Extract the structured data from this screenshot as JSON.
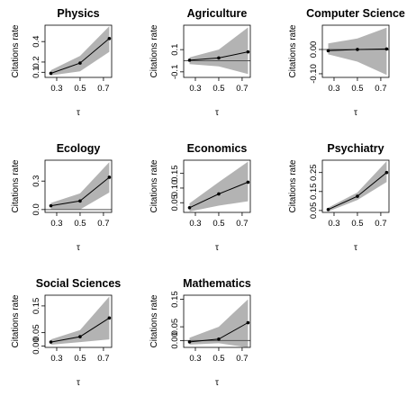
{
  "chart_data": [
    {
      "type": "line",
      "title": "Physics",
      "xlabel": "τ",
      "ylabel": "Citations rate",
      "x": [
        0.25,
        0.5,
        0.75
      ],
      "y": [
        0.09,
        0.19,
        0.43
      ],
      "band": {
        "lower": [
          0.07,
          0.11,
          0.3
        ],
        "upper": [
          0.12,
          0.26,
          0.55
        ]
      },
      "xticks": [
        0.3,
        0.5,
        0.7
      ],
      "yticks": [
        0.1,
        0.2,
        0.4
      ],
      "ytick_labels": [
        "0.1",
        "0.2",
        "0.4"
      ],
      "ylim": [
        0.05,
        0.56
      ],
      "xlim": [
        0.2,
        0.77
      ],
      "zero_line": false
    },
    {
      "type": "line",
      "title": "Agriculture",
      "xlabel": "τ",
      "ylabel": "Citations rate",
      "x": [
        0.25,
        0.5,
        0.75
      ],
      "y": [
        0.005,
        0.025,
        0.08
      ],
      "band": {
        "lower": [
          -0.03,
          -0.05,
          -0.12
        ],
        "upper": [
          0.03,
          0.1,
          0.3
        ]
      },
      "xticks": [
        0.3,
        0.5,
        0.7
      ],
      "yticks": [
        -0.1,
        0.1
      ],
      "ytick_labels": [
        "-0.1",
        "0.1"
      ],
      "ylim": [
        -0.15,
        0.32
      ],
      "xlim": [
        0.2,
        0.77
      ],
      "zero_line": true
    },
    {
      "type": "line",
      "title": "Computer Science",
      "xlabel": "τ",
      "ylabel": "Citations rate",
      "x": [
        0.25,
        0.5,
        0.75
      ],
      "y": [
        -0.005,
        0.0,
        0.002
      ],
      "band": {
        "lower": [
          -0.02,
          -0.05,
          -0.105
        ],
        "upper": [
          0.025,
          0.045,
          0.09
        ]
      },
      "xticks": [
        0.3,
        0.5,
        0.7
      ],
      "yticks": [
        -0.1,
        0.0
      ],
      "ytick_labels": [
        "-0.10",
        "0.00"
      ],
      "ylim": [
        -0.115,
        0.1
      ],
      "xlim": [
        0.2,
        0.77
      ],
      "zero_line": true
    },
    {
      "type": "line",
      "title": "Ecology",
      "xlabel": "τ",
      "ylabel": "Citations rate",
      "x": [
        0.25,
        0.5,
        0.75
      ],
      "y": [
        0.04,
        0.09,
        0.34
      ],
      "band": {
        "lower": [
          0.0,
          0.0,
          0.18
        ],
        "upper": [
          0.07,
          0.17,
          0.5
        ]
      },
      "xticks": [
        0.3,
        0.5,
        0.7
      ],
      "yticks": [
        0.0,
        0.3
      ],
      "ytick_labels": [
        "0.0",
        "0.3"
      ],
      "ylim": [
        -0.03,
        0.52
      ],
      "xlim": [
        0.2,
        0.77
      ],
      "zero_line": true
    },
    {
      "type": "line",
      "title": "Economics",
      "xlabel": "τ",
      "ylabel": "Citations rate",
      "x": [
        0.25,
        0.5,
        0.75
      ],
      "y": [
        0.033,
        0.08,
        0.12
      ],
      "band": {
        "lower": [
          0.02,
          0.04,
          0.055
        ],
        "upper": [
          0.048,
          0.12,
          0.19
        ]
      },
      "xticks": [
        0.3,
        0.5,
        0.7
      ],
      "yticks": [
        0.05,
        0.1,
        0.15
      ],
      "ytick_labels": [
        "0.05",
        "0.10",
        "0.15"
      ],
      "ylim": [
        0.017,
        0.195
      ],
      "xlim": [
        0.2,
        0.77
      ],
      "zero_line": false
    },
    {
      "type": "line",
      "title": "Psychiatry",
      "xlabel": "τ",
      "ylabel": "Citations rate",
      "x": [
        0.25,
        0.5,
        0.75
      ],
      "y": [
        0.055,
        0.125,
        0.25
      ],
      "band": {
        "lower": [
          0.045,
          0.105,
          0.2
        ],
        "upper": [
          0.065,
          0.145,
          0.31
        ]
      },
      "xticks": [
        0.3,
        0.5,
        0.7
      ],
      "yticks": [
        0.05,
        0.15,
        0.25
      ],
      "ytick_labels": [
        "0.05",
        "0.15",
        "0.25"
      ],
      "ylim": [
        0.04,
        0.315
      ],
      "xlim": [
        0.2,
        0.77
      ],
      "zero_line": false
    },
    {
      "type": "line",
      "title": "Social Sciences",
      "xlabel": "τ",
      "ylabel": "Citations rate",
      "x": [
        0.25,
        0.5,
        0.75
      ],
      "y": [
        0.015,
        0.035,
        0.105
      ],
      "band": {
        "lower": [
          0.005,
          0.015,
          0.025
        ],
        "upper": [
          0.025,
          0.06,
          0.185
        ]
      },
      "xticks": [
        0.3,
        0.5,
        0.7
      ],
      "yticks": [
        0.0,
        0.05,
        0.15
      ],
      "ytick_labels": [
        "0.00",
        "0.05",
        "0.15"
      ],
      "ylim": [
        -0.005,
        0.19
      ],
      "xlim": [
        0.2,
        0.77
      ],
      "zero_line": false
    },
    {
      "type": "line",
      "title": "Mathematics",
      "xlabel": "τ",
      "ylabel": "Citations rate",
      "x": [
        0.25,
        0.5,
        0.75
      ],
      "y": [
        -0.005,
        0.005,
        0.065
      ],
      "band": {
        "lower": [
          -0.015,
          -0.01,
          -0.025
        ],
        "upper": [
          0.01,
          0.05,
          0.15
        ]
      },
      "xticks": [
        0.3,
        0.5,
        0.7
      ],
      "yticks": [
        0.0,
        0.05,
        0.15
      ],
      "ytick_labels": [
        "0.00",
        "0.05",
        "0.15"
      ],
      "ylim": [
        -0.025,
        0.165
      ],
      "xlim": [
        0.2,
        0.77
      ],
      "zero_line": true
    }
  ],
  "colors": {
    "band": "#b3b3b3",
    "line": "#000000",
    "zero_line": "#555555",
    "axis": "#000000"
  }
}
